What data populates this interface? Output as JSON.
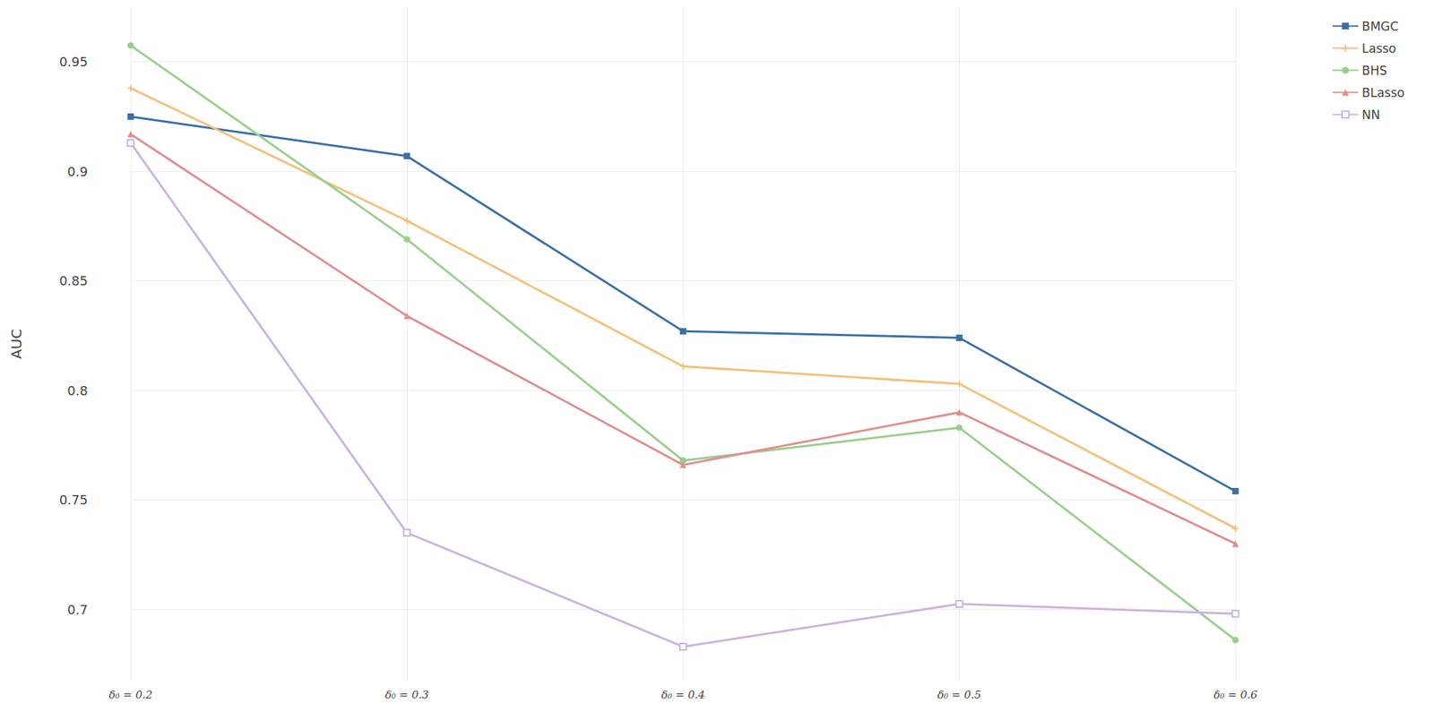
{
  "chart_data": {
    "type": "line",
    "y_label": "AUC",
    "categories": [
      "δ₀ = 0.2",
      "δ₀ = 0.3",
      "δ₀ = 0.4",
      "δ₀ = 0.5",
      "δ₀ = 0.6"
    ],
    "series": [
      {
        "name": "BMGC",
        "color": "#3a6fa8",
        "marker": "square",
        "values": [
          0.925,
          0.907,
          0.827,
          0.824,
          0.754
        ]
      },
      {
        "name": "Lasso",
        "color": "#f5bf7a",
        "marker": "cross",
        "values": [
          0.938,
          0.8775,
          0.811,
          0.803,
          0.737
        ]
      },
      {
        "name": "BHS",
        "color": "#98cf8c",
        "marker": "circle",
        "values": [
          0.9575,
          0.869,
          0.768,
          0.783,
          0.686
        ]
      },
      {
        "name": "BLasso",
        "color": "#e08e8e",
        "marker": "triangle",
        "values": [
          0.917,
          0.834,
          0.766,
          0.79,
          0.73
        ]
      },
      {
        "name": "NN",
        "color": "#c9b3e0",
        "marker": "square-open",
        "values": [
          0.913,
          0.735,
          0.683,
          0.7025,
          0.698
        ]
      }
    ],
    "ylim": [
      0.6675,
      0.975
    ],
    "yticks": [
      0.7,
      0.75,
      0.8,
      0.85,
      0.9,
      0.95
    ],
    "grid": true,
    "legend": "top-right"
  }
}
